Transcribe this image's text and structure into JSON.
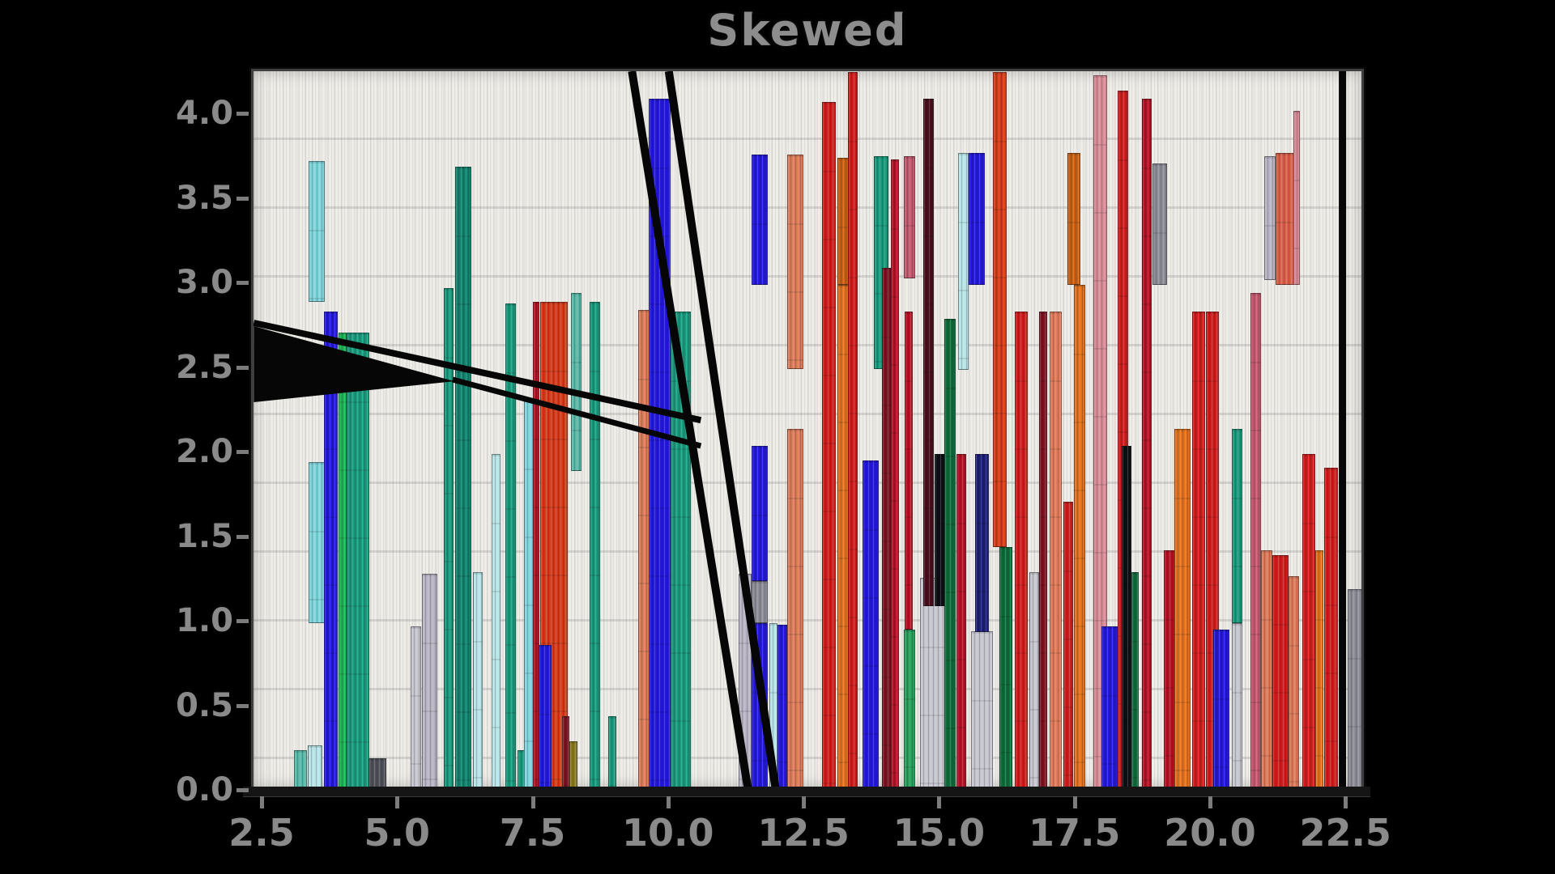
{
  "title": "Skewed",
  "palette": {
    "teal": "#189a7d",
    "tealDark": "#11826d",
    "tealLight": "#57b9a8",
    "cyan": "#7fd4dc",
    "cyanPale": "#b8e4e8",
    "green": "#17b554",
    "greenMid": "#27a05c",
    "greenDark": "#0e6b3a",
    "blue": "#2418dd",
    "navy": "#1b1f77",
    "red": "#cf1d1d",
    "redDark": "#b51325",
    "maroon": "#7c1322",
    "maroonDark": "#4a0d1c",
    "blackish": "#0d0f14",
    "orange": "#e2701c",
    "orangeStrong": "#c95f10",
    "orangered": "#d53a1a",
    "salmon": "#dd7a5a",
    "salmonRed": "#d95f4a",
    "rose": "#c4586e",
    "pink": "#d88a96",
    "silver": "#c6c6cf",
    "grayLav": "#b9b4c4",
    "grayBar": "#8c8c97",
    "grayDark": "#4f4f58",
    "olive": "#8a7a1e",
    "lineBlack": "#060606"
  },
  "chart_data": {
    "type": "bar",
    "title": "Skewed",
    "xlabel": "",
    "ylabel": "",
    "xlim": [
      2.306,
      22.84
    ],
    "ylim": [
      0,
      4.263
    ],
    "grid": false,
    "legend": null,
    "x_ticks": [
      {
        "value": 2.5,
        "label": "2.5"
      },
      {
        "value": 5.0,
        "label": "5.0"
      },
      {
        "value": 7.5,
        "label": "7.5"
      },
      {
        "value": 10.0,
        "label": "10.0"
      },
      {
        "value": 12.5,
        "label": "12.5"
      },
      {
        "value": 15.0,
        "label": "15.0"
      },
      {
        "value": 17.5,
        "label": "17.5"
      },
      {
        "value": 20.0,
        "label": "20.0"
      },
      {
        "value": 22.5,
        "label": "22.5"
      }
    ],
    "y_ticks": [
      {
        "value": 0.0,
        "label": "0.0"
      },
      {
        "value": 0.5,
        "label": "0.5"
      },
      {
        "value": 1.0,
        "label": "1.0"
      },
      {
        "value": 1.5,
        "label": "1.5"
      },
      {
        "value": 2.0,
        "label": "2.0"
      },
      {
        "value": 2.5,
        "label": "2.5"
      },
      {
        "value": 3.0,
        "label": "3.0"
      },
      {
        "value": 3.5,
        "label": "3.5"
      },
      {
        "value": 4.0,
        "label": "4.0"
      }
    ],
    "bars": [
      {
        "x": 3.05,
        "w": 0.25,
        "y0": 0,
        "y1": 0.25,
        "c": "tealLight"
      },
      {
        "x": 3.3,
        "w": 0.28,
        "y0": 0,
        "y1": 0.28,
        "c": "cyanPale"
      },
      {
        "x": 3.32,
        "w": 0.3,
        "y0": 1.0,
        "y1": 1.95,
        "c": "cyan"
      },
      {
        "x": 3.32,
        "w": 0.3,
        "y0": 2.9,
        "y1": 3.73,
        "c": "cyan"
      },
      {
        "x": 3.6,
        "w": 0.26,
        "y0": 0,
        "y1": 2.84,
        "c": "blue"
      },
      {
        "x": 3.88,
        "w": 0.14,
        "y0": 0,
        "y1": 2.72,
        "c": "green"
      },
      {
        "x": 4.02,
        "w": 0.42,
        "y0": 0,
        "y1": 2.72,
        "c": "teal"
      },
      {
        "x": 4.42,
        "w": 0.34,
        "y0": 0,
        "y1": 0.2,
        "c": "grayDark"
      },
      {
        "x": 5.2,
        "w": 0.2,
        "y0": 0,
        "y1": 0.98,
        "c": "silver"
      },
      {
        "x": 5.42,
        "w": 0.28,
        "y0": 0,
        "y1": 1.29,
        "c": "grayLav"
      },
      {
        "x": 5.82,
        "w": 0.18,
        "y0": 0,
        "y1": 2.98,
        "c": "teal"
      },
      {
        "x": 6.02,
        "w": 0.3,
        "y0": 0,
        "y1": 3.7,
        "c": "tealDark"
      },
      {
        "x": 6.36,
        "w": 0.18,
        "y0": 0,
        "y1": 1.3,
        "c": "cyanPale"
      },
      {
        "x": 6.7,
        "w": 0.16,
        "y0": 0,
        "y1": 2.0,
        "c": "cyanPale"
      },
      {
        "x": 6.95,
        "w": 0.2,
        "y0": 0,
        "y1": 2.89,
        "c": "teal"
      },
      {
        "x": 7.17,
        "w": 0.14,
        "y0": 0,
        "y1": 0.25,
        "c": "teal"
      },
      {
        "x": 7.3,
        "w": 0.2,
        "y0": 0,
        "y1": 2.32,
        "c": "cyan"
      },
      {
        "x": 7.46,
        "w": 0.12,
        "y0": 0,
        "y1": 2.9,
        "c": "redDark"
      },
      {
        "x": 7.6,
        "w": 0.5,
        "y0": 0,
        "y1": 2.9,
        "c": "orangered"
      },
      {
        "x": 7.56,
        "w": 0.24,
        "y0": 0,
        "y1": 0.87,
        "c": "blue"
      },
      {
        "x": 8.0,
        "w": 0.14,
        "y0": 0,
        "y1": 0.45,
        "c": "maroon"
      },
      {
        "x": 8.14,
        "w": 0.14,
        "y0": 0,
        "y1": 0.3,
        "c": "olive"
      },
      {
        "x": 8.16,
        "w": 0.2,
        "y0": 1.9,
        "y1": 2.95,
        "c": "tealLight"
      },
      {
        "x": 8.5,
        "w": 0.2,
        "y0": 0,
        "y1": 2.9,
        "c": "teal"
      },
      {
        "x": 8.85,
        "w": 0.15,
        "y0": 0,
        "y1": 0.45,
        "c": "teal"
      },
      {
        "x": 9.4,
        "w": 0.25,
        "y0": 0,
        "y1": 2.85,
        "c": "salmon"
      },
      {
        "x": 9.6,
        "w": 0.4,
        "y0": 0,
        "y1": 4.1,
        "c": "blue"
      },
      {
        "x": 10.0,
        "w": 0.38,
        "y0": 0,
        "y1": 2.84,
        "c": "teal"
      },
      {
        "x": 11.25,
        "w": 0.24,
        "y0": 0,
        "y1": 1.29,
        "c": "grayLav"
      },
      {
        "x": 11.5,
        "w": 0.3,
        "y0": 0,
        "y1": 1.0,
        "c": "blue"
      },
      {
        "x": 11.5,
        "w": 0.3,
        "y0": 1.0,
        "y1": 1.25,
        "c": "grayBar"
      },
      {
        "x": 11.5,
        "w": 0.3,
        "y0": 1.25,
        "y1": 2.05,
        "c": "blue"
      },
      {
        "x": 11.5,
        "w": 0.3,
        "y0": 3.0,
        "y1": 3.77,
        "c": "blue"
      },
      {
        "x": 11.82,
        "w": 0.15,
        "y0": 0,
        "y1": 1.0,
        "c": "cyanPale"
      },
      {
        "x": 11.97,
        "w": 0.25,
        "y0": 0,
        "y1": 0.99,
        "c": "blue"
      },
      {
        "x": 12.15,
        "w": 0.3,
        "y0": 0,
        "y1": 2.15,
        "c": "salmon"
      },
      {
        "x": 12.15,
        "w": 0.3,
        "y0": 2.5,
        "y1": 3.77,
        "c": "salmon"
      },
      {
        "x": 12.8,
        "w": 0.25,
        "y0": 0,
        "y1": 4.08,
        "c": "red"
      },
      {
        "x": 13.08,
        "w": 0.26,
        "y0": 0,
        "y1": 3.0,
        "c": "orange"
      },
      {
        "x": 13.08,
        "w": 0.26,
        "y0": 3.0,
        "y1": 3.75,
        "c": "orangeStrong"
      },
      {
        "x": 13.28,
        "w": 0.18,
        "y0": 0,
        "y1": 4.26,
        "c": "red"
      },
      {
        "x": 13.55,
        "w": 0.3,
        "y0": 0,
        "y1": 1.96,
        "c": "blue"
      },
      {
        "x": 13.76,
        "w": 0.26,
        "y0": 2.5,
        "y1": 3.76,
        "c": "teal"
      },
      {
        "x": 13.9,
        "w": 0.3,
        "y0": 0,
        "y1": 3.1,
        "c": "maroon"
      },
      {
        "x": 14.06,
        "w": 0.15,
        "y0": 0,
        "y1": 3.74,
        "c": "redDark"
      },
      {
        "x": 14.3,
        "w": 0.22,
        "y0": 3.04,
        "y1": 3.76,
        "c": "rose"
      },
      {
        "x": 14.32,
        "w": 0.15,
        "y0": 0.96,
        "y1": 2.84,
        "c": "redDark"
      },
      {
        "x": 14.3,
        "w": 0.22,
        "y0": 0,
        "y1": 0.96,
        "c": "greenMid"
      },
      {
        "x": 14.6,
        "w": 0.62,
        "y0": 0,
        "y1": 1.27,
        "c": "silver"
      },
      {
        "x": 14.66,
        "w": 0.2,
        "y0": 1.1,
        "y1": 4.1,
        "c": "maroonDark"
      },
      {
        "x": 14.88,
        "w": 0.2,
        "y0": 1.1,
        "y1": 2.0,
        "c": "blackish"
      },
      {
        "x": 15.06,
        "w": 0.2,
        "y0": 0,
        "y1": 2.8,
        "c": "greenDark"
      },
      {
        "x": 15.27,
        "w": 0.18,
        "y0": 0,
        "y1": 2.0,
        "c": "redDark"
      },
      {
        "x": 15.3,
        "w": 0.2,
        "y0": 2.5,
        "y1": 3.78,
        "c": "cyanPale"
      },
      {
        "x": 15.5,
        "w": 0.3,
        "y0": 3.0,
        "y1": 3.78,
        "c": "blue"
      },
      {
        "x": 15.55,
        "w": 0.4,
        "y0": 0,
        "y1": 0.95,
        "c": "silver"
      },
      {
        "x": 15.62,
        "w": 0.26,
        "y0": 0.95,
        "y1": 2.0,
        "c": "navy"
      },
      {
        "x": 15.95,
        "w": 0.26,
        "y0": 1.45,
        "y1": 4.26,
        "c": "orangered"
      },
      {
        "x": 16.07,
        "w": 0.24,
        "y0": 0,
        "y1": 1.45,
        "c": "greenDark"
      },
      {
        "x": 16.36,
        "w": 0.24,
        "y0": 0,
        "y1": 2.84,
        "c": "red"
      },
      {
        "x": 16.62,
        "w": 0.18,
        "y0": 0,
        "y1": 1.3,
        "c": "silver"
      },
      {
        "x": 16.8,
        "w": 0.15,
        "y0": 0,
        "y1": 2.84,
        "c": "maroon"
      },
      {
        "x": 17.0,
        "w": 0.22,
        "y0": 0,
        "y1": 2.84,
        "c": "salmon"
      },
      {
        "x": 17.25,
        "w": 0.18,
        "y0": 0,
        "y1": 1.72,
        "c": "red"
      },
      {
        "x": 17.32,
        "w": 0.24,
        "y0": 3.0,
        "y1": 3.78,
        "c": "orangeStrong"
      },
      {
        "x": 17.45,
        "w": 0.2,
        "y0": 0,
        "y1": 3.0,
        "c": "orange"
      },
      {
        "x": 17.8,
        "w": 0.26,
        "y0": 0,
        "y1": 4.24,
        "c": "pink"
      },
      {
        "x": 17.95,
        "w": 0.3,
        "y0": 0,
        "y1": 0.98,
        "c": "blue"
      },
      {
        "x": 18.25,
        "w": 0.2,
        "y0": 0,
        "y1": 4.15,
        "c": "red"
      },
      {
        "x": 18.32,
        "w": 0.18,
        "y0": 0,
        "y1": 2.05,
        "c": "blackish"
      },
      {
        "x": 18.5,
        "w": 0.14,
        "y0": 0,
        "y1": 1.3,
        "c": "greenDark"
      },
      {
        "x": 18.7,
        "w": 0.18,
        "y0": 0,
        "y1": 4.1,
        "c": "redDark"
      },
      {
        "x": 18.9,
        "w": 0.26,
        "y0": 3.0,
        "y1": 3.72,
        "c": "grayBar"
      },
      {
        "x": 19.1,
        "w": 0.2,
        "y0": 0,
        "y1": 1.43,
        "c": "redDark"
      },
      {
        "x": 19.3,
        "w": 0.3,
        "y0": 0,
        "y1": 2.15,
        "c": "orange"
      },
      {
        "x": 19.62,
        "w": 0.24,
        "y0": 0,
        "y1": 2.84,
        "c": "red"
      },
      {
        "x": 19.88,
        "w": 0.24,
        "y0": 0,
        "y1": 2.84,
        "c": "red"
      },
      {
        "x": 20.02,
        "w": 0.3,
        "y0": 0,
        "y1": 0.96,
        "c": "blue"
      },
      {
        "x": 20.36,
        "w": 0.2,
        "y0": 0,
        "y1": 1.0,
        "c": "silver"
      },
      {
        "x": 20.36,
        "w": 0.2,
        "y0": 1.0,
        "y1": 2.15,
        "c": "teal"
      },
      {
        "x": 20.7,
        "w": 0.2,
        "y0": 0,
        "y1": 2.95,
        "c": "rose"
      },
      {
        "x": 20.9,
        "w": 0.2,
        "y0": 0,
        "y1": 1.43,
        "c": "salmon"
      },
      {
        "x": 20.96,
        "w": 0.2,
        "y0": 3.03,
        "y1": 3.76,
        "c": "grayLav"
      },
      {
        "x": 21.1,
        "w": 0.3,
        "y0": 0,
        "y1": 1.4,
        "c": "red"
      },
      {
        "x": 21.16,
        "w": 0.4,
        "y0": 3.0,
        "y1": 3.78,
        "c": "salmonRed"
      },
      {
        "x": 21.4,
        "w": 0.2,
        "y0": 0,
        "y1": 1.28,
        "c": "salmon"
      },
      {
        "x": 21.5,
        "w": 0.12,
        "y0": 3.0,
        "y1": 4.03,
        "c": "pink"
      },
      {
        "x": 21.66,
        "w": 0.24,
        "y0": 0,
        "y1": 2.0,
        "c": "red"
      },
      {
        "x": 21.9,
        "w": 0.15,
        "y0": 0,
        "y1": 1.43,
        "c": "orange"
      },
      {
        "x": 22.06,
        "w": 0.26,
        "y0": 0,
        "y1": 1.92,
        "c": "red"
      },
      {
        "x": 22.5,
        "w": 0.34,
        "y0": 0,
        "y1": 1.2,
        "c": "grayBar"
      }
    ],
    "annotation_lines": [
      {
        "x1": 2.31,
        "y1": 2.775,
        "x2": 10.56,
        "y2": 2.2,
        "stroke_px": 8
      },
      {
        "x1": 5.98,
        "y1": 2.44,
        "x2": 10.56,
        "y2": 2.048,
        "stroke_px": 7
      },
      {
        "x1": 9.29,
        "y1": 4.263,
        "x2": 11.44,
        "y2": 0.0,
        "stroke_px": 10
      },
      {
        "x1": 9.97,
        "y1": 4.263,
        "x2": 11.95,
        "y2": 0.0,
        "stroke_px": 10
      },
      {
        "x1": 22.4,
        "y1": 4.263,
        "x2": 22.4,
        "y2": 0.0,
        "stroke_px": 9
      }
    ],
    "annotation_wedge": [
      [
        2.31,
        2.756
      ],
      [
        2.31,
        2.306
      ],
      [
        6.01,
        2.43
      ]
    ]
  }
}
